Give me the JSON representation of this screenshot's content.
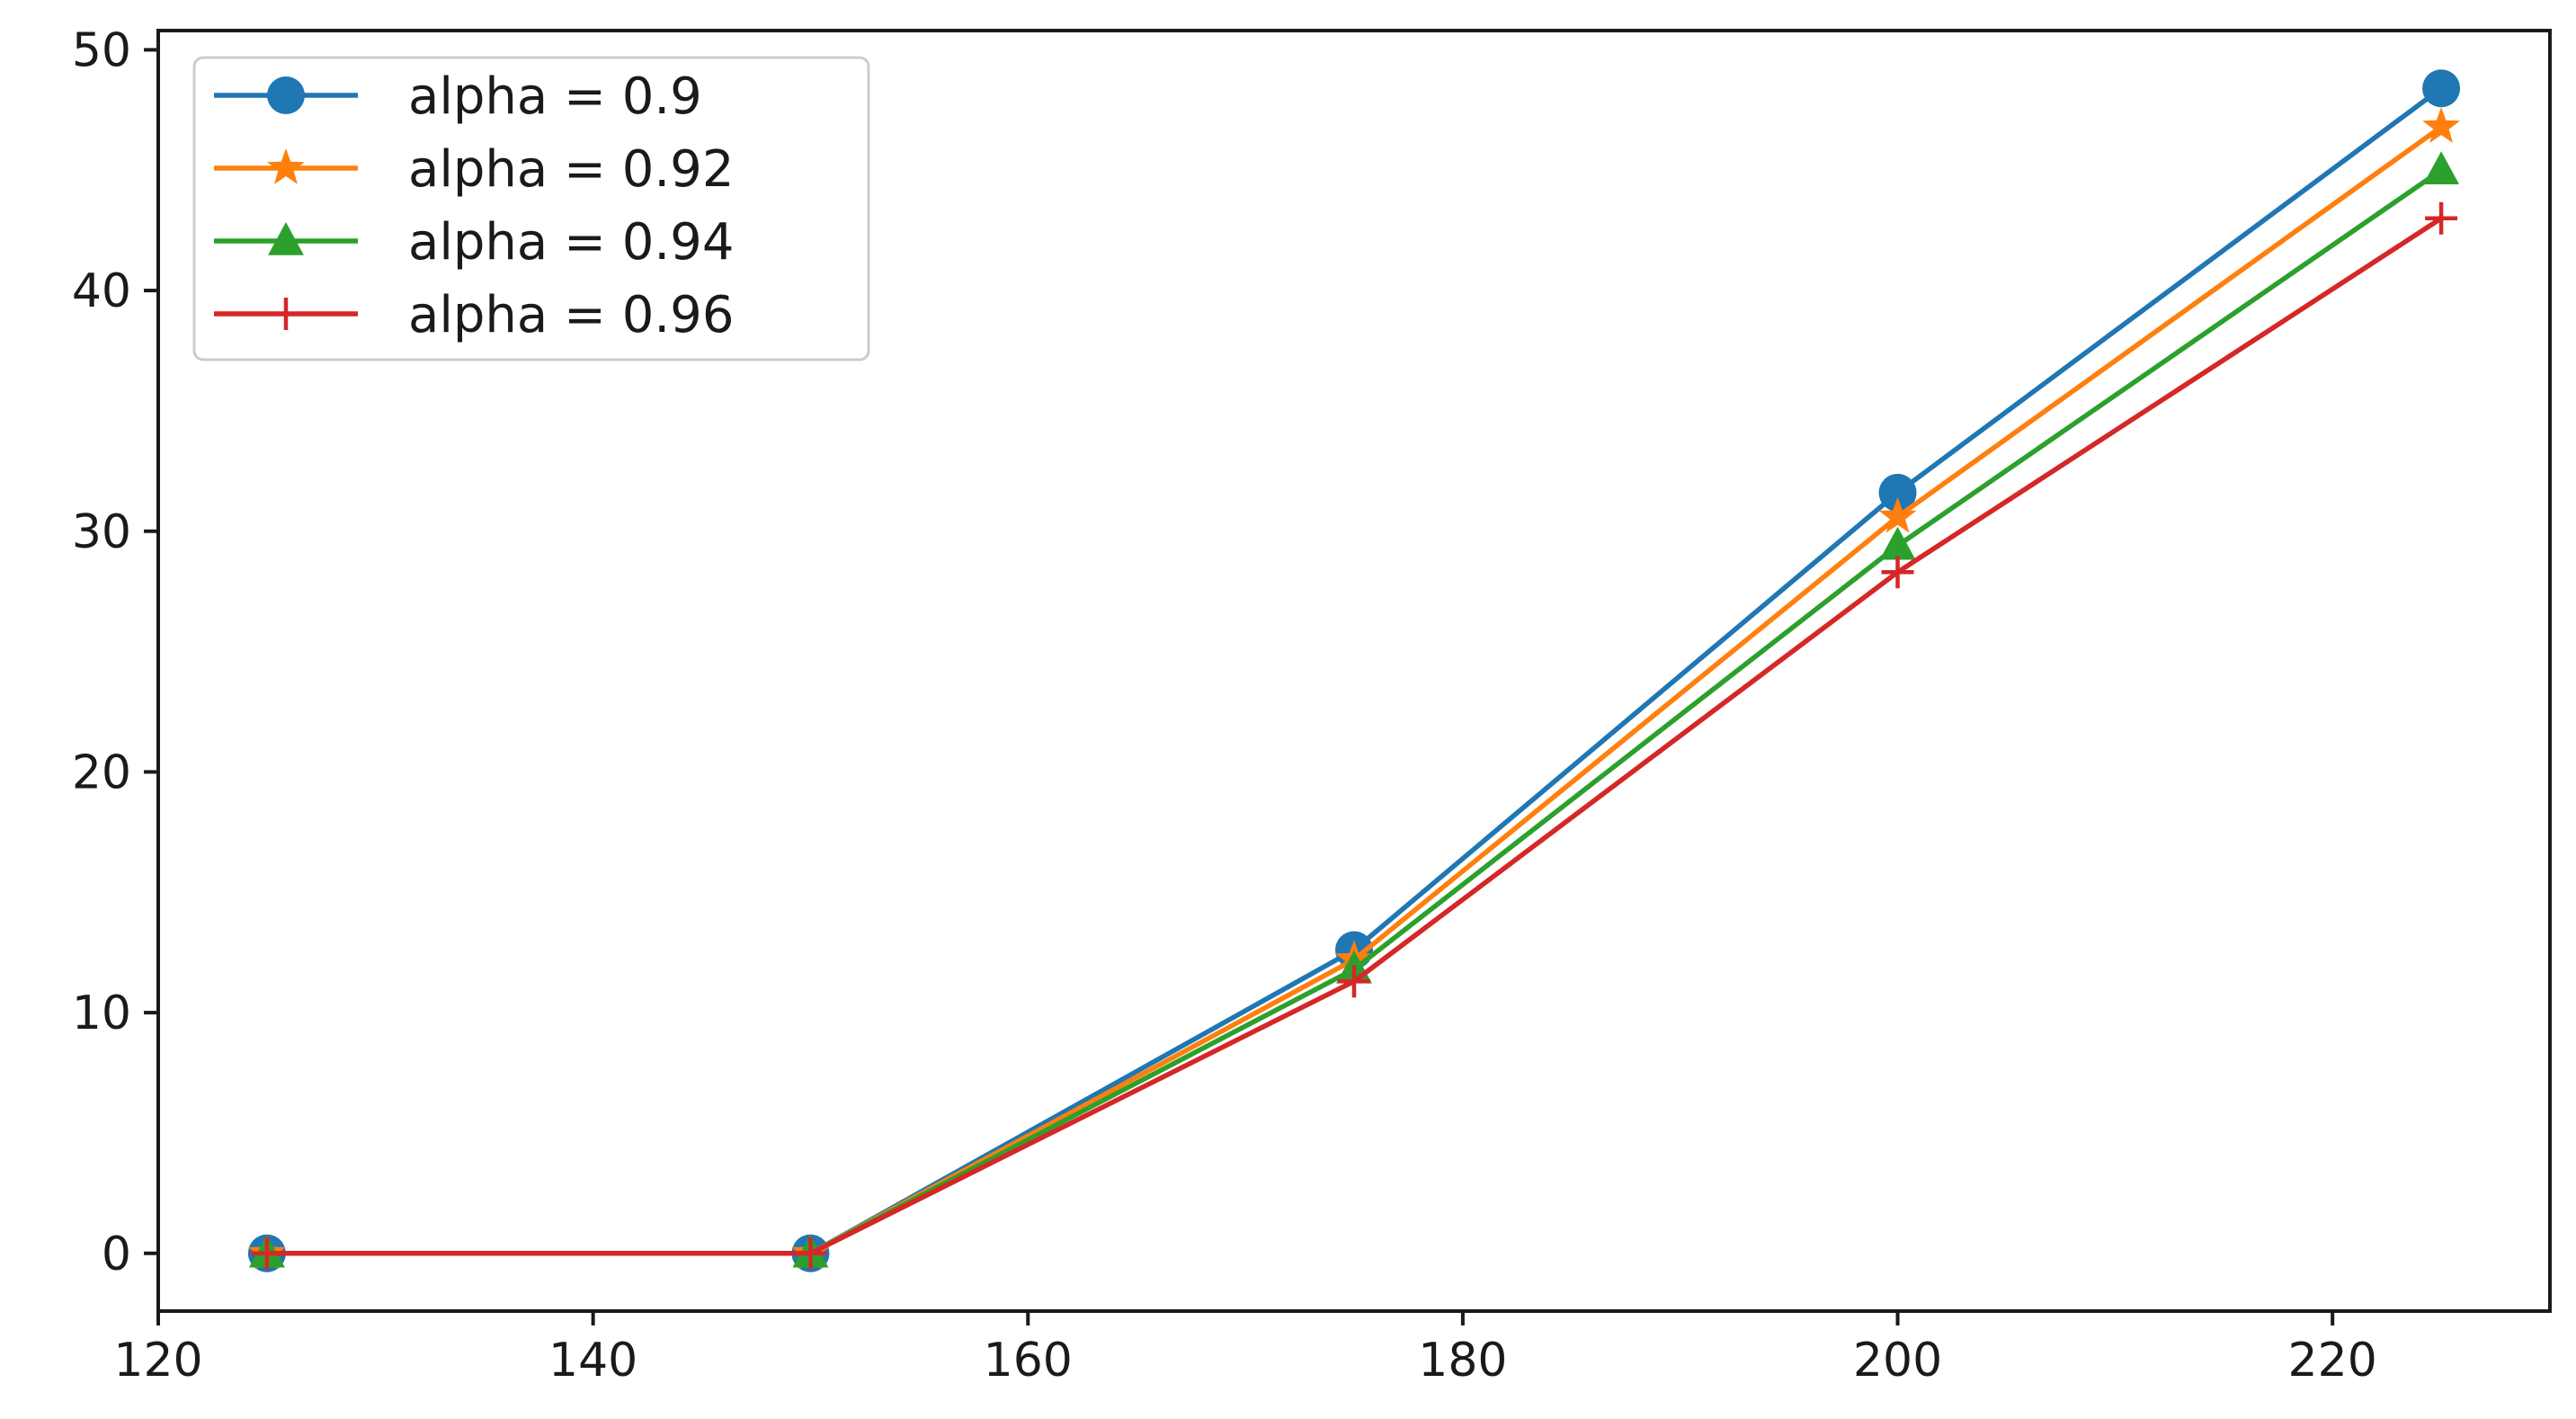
{
  "chart_data": {
    "type": "line",
    "title": "",
    "xlabel": "",
    "ylabel": "",
    "x": [
      125,
      150,
      175,
      200,
      225
    ],
    "xlim": [
      120,
      230
    ],
    "ylim": [
      -2.4,
      50.8
    ],
    "xticks": [
      120,
      140,
      160,
      180,
      200,
      220
    ],
    "yticks": [
      0,
      10,
      20,
      30,
      40,
      50
    ],
    "xtick_labels": [
      "120",
      "140",
      "160",
      "180",
      "200",
      "220"
    ],
    "ytick_labels": [
      "0",
      "10",
      "20",
      "30",
      "40",
      "50"
    ],
    "grid": false,
    "legend_position": "top-left",
    "series": [
      {
        "name": "alpha = 0.9",
        "color": "#1f77b4",
        "marker": "circle",
        "values": [
          0,
          0,
          12.6,
          31.6,
          48.4
        ]
      },
      {
        "name": "alpha = 0.92",
        "color": "#ff7f0e",
        "marker": "star",
        "values": [
          0,
          0,
          12.2,
          30.6,
          46.8
        ]
      },
      {
        "name": "alpha = 0.94",
        "color": "#2ca02c",
        "marker": "triangle",
        "values": [
          0,
          0,
          11.8,
          29.4,
          45.0
        ]
      },
      {
        "name": "alpha = 0.96",
        "color": "#d62728",
        "marker": "plus",
        "values": [
          0,
          0,
          11.3,
          28.3,
          43.0
        ]
      }
    ]
  }
}
